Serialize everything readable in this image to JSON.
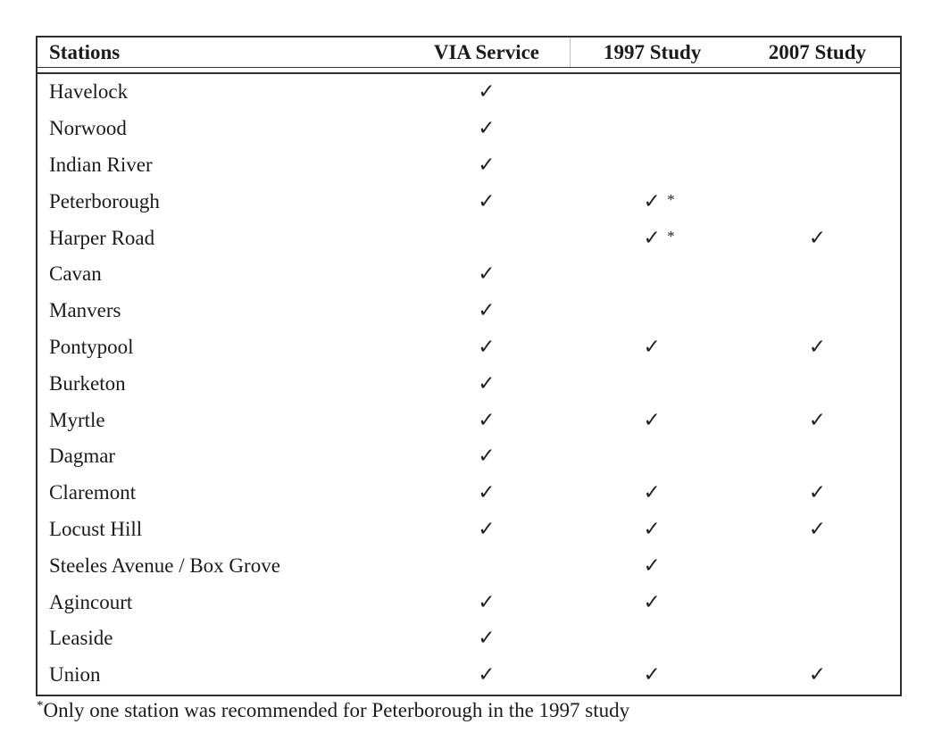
{
  "table": {
    "columns": [
      {
        "key": "station",
        "label": "Stations"
      },
      {
        "key": "via",
        "label": "VIA Service"
      },
      {
        "key": "study_1997",
        "label": "1997 Study"
      },
      {
        "key": "study_2007",
        "label": "2007 Study"
      }
    ],
    "check_symbol": "✓",
    "note_marker": "*",
    "rows": [
      {
        "station": "Havelock",
        "via": "✓",
        "study_1997": "",
        "study_2007": ""
      },
      {
        "station": "Norwood",
        "via": "✓",
        "study_1997": "",
        "study_2007": ""
      },
      {
        "station": "Indian River",
        "via": "✓",
        "study_1997": "",
        "study_2007": ""
      },
      {
        "station": "Peterborough",
        "via": "✓",
        "study_1997": "✓*",
        "study_2007": ""
      },
      {
        "station": "Harper Road",
        "via": "",
        "study_1997": "✓*",
        "study_2007": "✓"
      },
      {
        "station": "Cavan",
        "via": "✓",
        "study_1997": "",
        "study_2007": ""
      },
      {
        "station": "Manvers",
        "via": "✓",
        "study_1997": "",
        "study_2007": ""
      },
      {
        "station": "Pontypool",
        "via": "✓",
        "study_1997": "✓",
        "study_2007": "✓"
      },
      {
        "station": "Burketon",
        "via": "✓",
        "study_1997": "",
        "study_2007": ""
      },
      {
        "station": "Myrtle",
        "via": "✓",
        "study_1997": "✓",
        "study_2007": "✓"
      },
      {
        "station": "Dagmar",
        "via": "✓",
        "study_1997": "",
        "study_2007": ""
      },
      {
        "station": "Claremont",
        "via": "✓",
        "study_1997": "✓",
        "study_2007": "✓"
      },
      {
        "station": "Locust Hill",
        "via": "✓",
        "study_1997": "✓",
        "study_2007": "✓"
      },
      {
        "station": "Steeles Avenue / Box Grove",
        "via": "",
        "study_1997": "✓",
        "study_2007": ""
      },
      {
        "station": "Agincourt",
        "via": "✓",
        "study_1997": "✓",
        "study_2007": ""
      },
      {
        "station": "Leaside",
        "via": "✓",
        "study_1997": "",
        "study_2007": ""
      },
      {
        "station": "Union",
        "via": "✓",
        "study_1997": "✓",
        "study_2007": "✓"
      }
    ]
  },
  "footnote": {
    "marker": "*",
    "text": "Only one station was recommended for Peterborough in the 1997 study"
  },
  "colors": {
    "border": "#2e2e2e",
    "text": "#1b1b1b",
    "background": "#ffffff"
  }
}
